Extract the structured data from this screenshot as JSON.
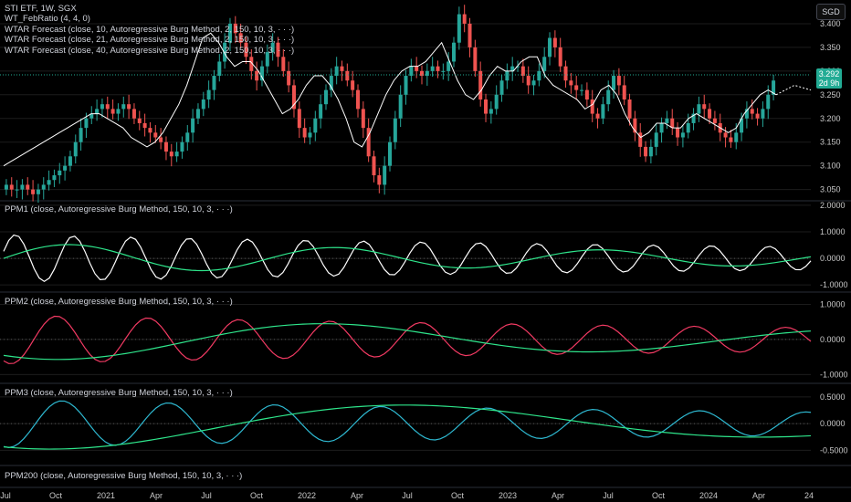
{
  "header": {
    "symbol_line": "STI ETF, 1W, SGX",
    "indicators": [
      "WT_FebRatio (4, 4, 0)",
      "WTAR Forecast (close, 10, Autoregressive Burg Method, 2, 150, 10, 3, · · ·)",
      "WTAR Forecast (close, 21, Autoregressive Burg Method, 2, 150, 10, 3, · · ·)",
      "WTAR Forecast (close, 40, Autoregressive Burg Method, 2, 150, 10, 3, · · ·)"
    ],
    "currency_button": "SGD"
  },
  "colors": {
    "background": "#000000",
    "up_candle": "#26a69a",
    "down_candle": "#ef5350",
    "white_line": "#ffffff",
    "green_line": "#2ee58b",
    "pink_line": "#f23a63",
    "cyan_line": "#2eb8d0",
    "dots_green": "#2ecc71",
    "dots_red": "#ff4d4d",
    "axis_text": "#c8c8c8",
    "grid": "#1c1c1c",
    "price_tag": "#22ab94"
  },
  "last_price": {
    "value": "3.292",
    "countdown": "2d 9h"
  },
  "time_axis": [
    "Jul",
    "Oct",
    "2021",
    "Apr",
    "Jul",
    "Oct",
    "2022",
    "Apr",
    "Jul",
    "Oct",
    "2023",
    "Apr",
    "Jul",
    "Oct",
    "2024",
    "Apr",
    "24"
  ],
  "chart_data": [
    {
      "type": "candlestick",
      "title": "STI ETF, 1W, SGX",
      "y_ticks": [
        "3.400",
        "3.350",
        "3.300",
        "3.250",
        "3.200",
        "3.150",
        "3.100",
        "3.050"
      ],
      "ylim": [
        3.03,
        3.45
      ],
      "series": [
        {
          "name": "STI ETF",
          "kind": "ohlc",
          "close": [
            3.06,
            3.05,
            3.05,
            3.06,
            3.05,
            3.04,
            3.05,
            3.06,
            3.07,
            3.08,
            3.09,
            3.1,
            3.12,
            3.15,
            3.18,
            3.2,
            3.21,
            3.22,
            3.23,
            3.22,
            3.21,
            3.22,
            3.23,
            3.22,
            3.2,
            3.19,
            3.18,
            3.17,
            3.16,
            3.15,
            3.13,
            3.12,
            3.13,
            3.15,
            3.17,
            3.2,
            3.22,
            3.24,
            3.26,
            3.29,
            3.32,
            3.36,
            3.4,
            3.38,
            3.36,
            3.33,
            3.3,
            3.28,
            3.31,
            3.34,
            3.36,
            3.33,
            3.3,
            3.27,
            3.22,
            3.18,
            3.16,
            3.17,
            3.2,
            3.23,
            3.26,
            3.29,
            3.31,
            3.3,
            3.28,
            3.26,
            3.22,
            3.18,
            3.12,
            3.08,
            3.06,
            3.1,
            3.15,
            3.2,
            3.25,
            3.29,
            3.31,
            3.3,
            3.29,
            3.3,
            3.31,
            3.3,
            3.3,
            3.32,
            3.36,
            3.42,
            3.4,
            3.35,
            3.3,
            3.24,
            3.21,
            3.22,
            3.25,
            3.28,
            3.3,
            3.31,
            3.31,
            3.29,
            3.27,
            3.28,
            3.3,
            3.33,
            3.37,
            3.35,
            3.31,
            3.28,
            3.27,
            3.26,
            3.26,
            3.24,
            3.21,
            3.2,
            3.23,
            3.26,
            3.29,
            3.27,
            3.24,
            3.2,
            3.17,
            3.14,
            3.12,
            3.14,
            3.17,
            3.19,
            3.2,
            3.18,
            3.16,
            3.17,
            3.19,
            3.21,
            3.23,
            3.22,
            3.2,
            3.19,
            3.17,
            3.16,
            3.15,
            3.17,
            3.2,
            3.22,
            3.21,
            3.2,
            3.22,
            3.25,
            3.28
          ]
        },
        {
          "name": "WTAR Forecast (10)",
          "color": "#ffffff",
          "values": [
            3.1,
            3.11,
            3.12,
            3.13,
            3.14,
            3.15,
            3.16,
            3.17,
            3.18,
            3.19,
            3.2,
            3.21,
            3.21,
            3.2,
            3.19,
            3.18,
            3.16,
            3.15,
            3.14,
            3.15,
            3.17,
            3.2,
            3.23,
            3.27,
            3.32,
            3.37,
            3.38,
            3.36,
            3.33,
            3.31,
            3.32,
            3.32,
            3.3,
            3.27,
            3.24,
            3.21,
            3.22,
            3.24,
            3.27,
            3.29,
            3.29,
            3.27,
            3.24,
            3.2,
            3.15,
            3.14,
            3.17,
            3.21,
            3.25,
            3.28,
            3.3,
            3.31,
            3.31,
            3.32,
            3.34,
            3.36,
            3.32,
            3.28,
            3.25,
            3.24,
            3.26,
            3.29,
            3.31,
            3.3,
            3.3,
            3.32,
            3.33,
            3.33,
            3.29,
            3.27,
            3.26,
            3.25,
            3.24,
            3.22,
            3.23,
            3.26,
            3.27,
            3.25,
            3.21,
            3.18,
            3.16,
            3.17,
            3.19,
            3.19,
            3.18,
            3.18,
            3.2,
            3.21,
            3.2,
            3.19,
            3.18,
            3.17,
            3.18,
            3.21,
            3.23,
            3.25,
            3.26,
            3.25
          ]
        }
      ]
    },
    {
      "type": "line",
      "title": "PPM1 (close, Autoregressive Burg Method, 150, 10, 3, · · ·)",
      "y_ticks": [
        "2.0000",
        "1.0000",
        "0.0000",
        "-1.0000"
      ],
      "ylim": [
        -1.2,
        2.1
      ]
    },
    {
      "type": "line",
      "title": "PPM2 (close, Autoregressive Burg Method, 150, 10, 3, · · ·)",
      "y_ticks": [
        "1.0000",
        "0.0000",
        "-1.0000"
      ],
      "ylim": [
        -1.2,
        1.3
      ]
    },
    {
      "type": "line",
      "title": "PPM3 (close, Autoregressive Burg Method, 150, 10, 3, · · ·)",
      "y_ticks": [
        "0.5000",
        "0.0000",
        "-0.5000"
      ],
      "ylim": [
        -0.75,
        0.72
      ]
    },
    {
      "type": "line",
      "title": "PPM200 (close, Autoregressive Burg Method, 150, 10, 3, · · ·)",
      "y_ticks": [],
      "ylim": [
        0,
        1
      ]
    }
  ]
}
